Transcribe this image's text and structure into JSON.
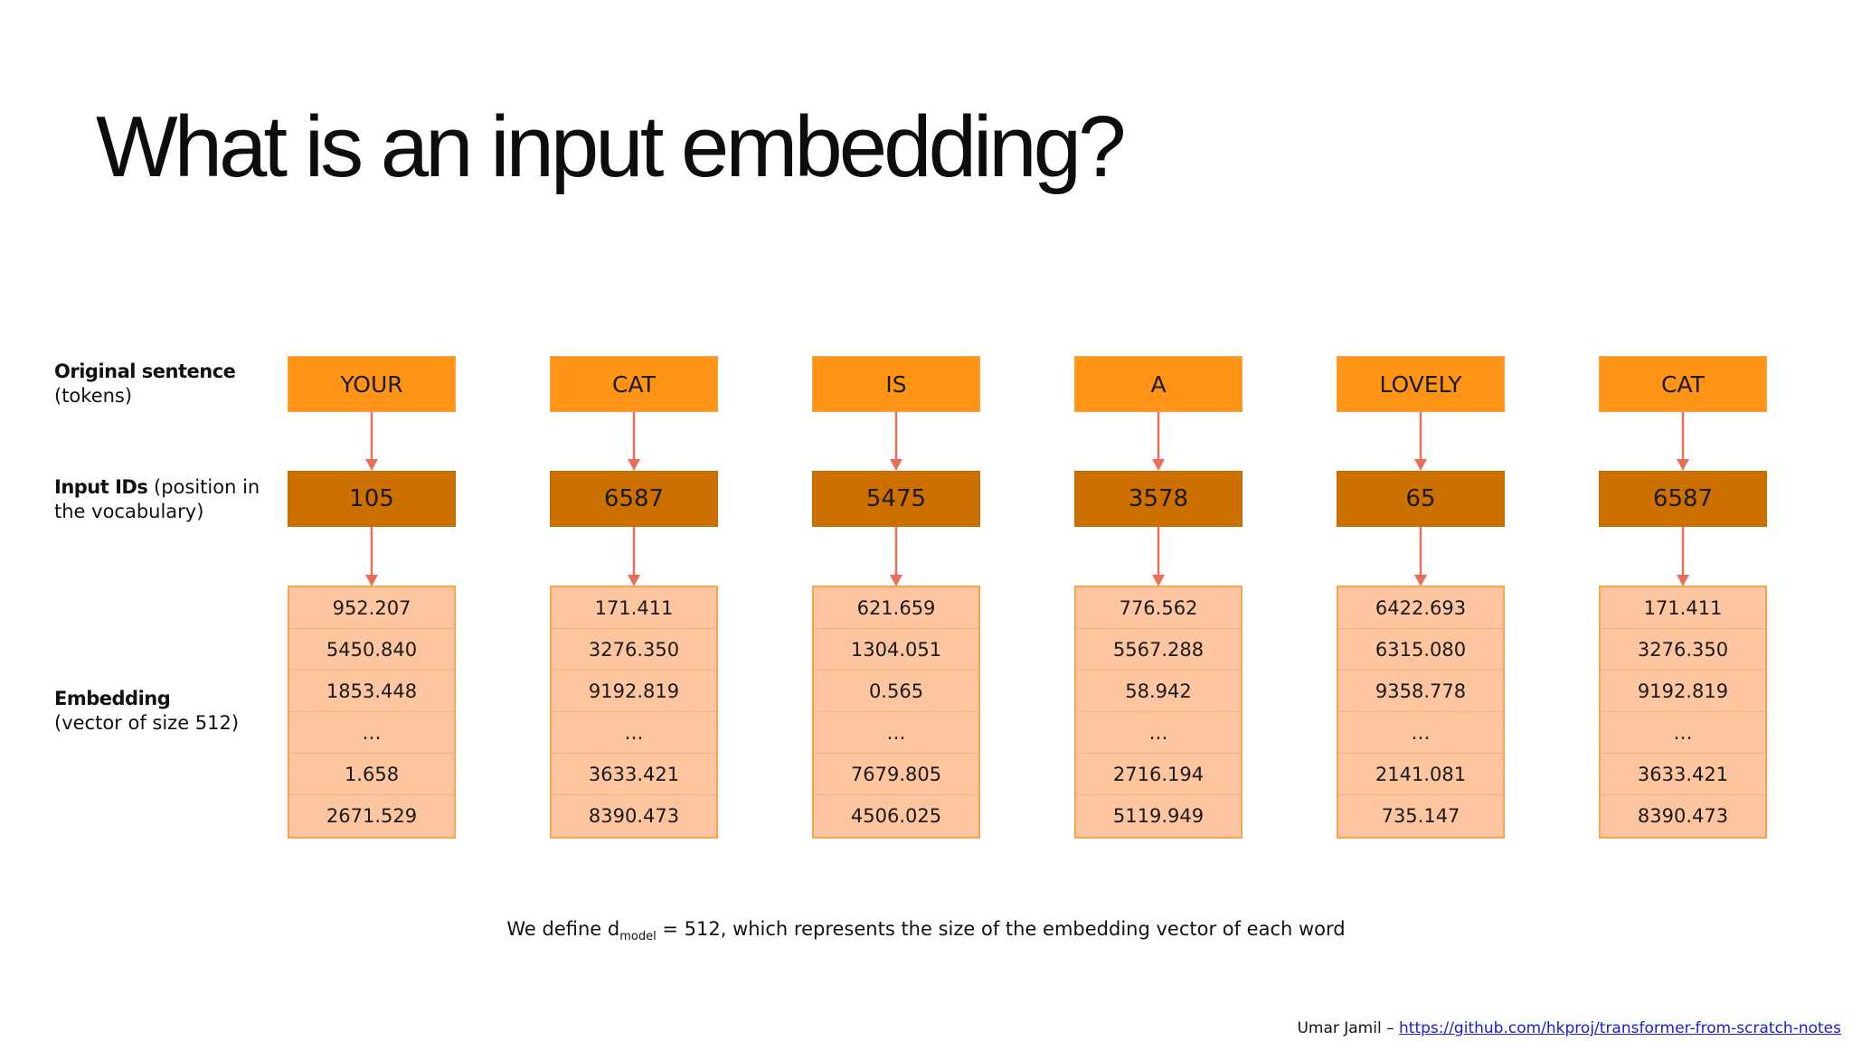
{
  "title": "What is an input embedding?",
  "labels": {
    "tokens_bold": "Original sentence",
    "tokens_rest": "(tokens)",
    "ids_bold": "Input IDs",
    "ids_rest": " (position in the vocabulary)",
    "embedding_bold": "Embedding",
    "embedding_rest": "(vector of size 512)"
  },
  "columns": [
    {
      "token": "YOUR",
      "id": "105",
      "embedding": [
        "952.207",
        "5450.840",
        "1853.448",
        "…",
        "1.658",
        "2671.529"
      ]
    },
    {
      "token": "CAT",
      "id": "6587",
      "embedding": [
        "171.411",
        "3276.350",
        "9192.819",
        "…",
        "3633.421",
        "8390.473"
      ]
    },
    {
      "token": "IS",
      "id": "5475",
      "embedding": [
        "621.659",
        "1304.051",
        "0.565",
        "…",
        "7679.805",
        "4506.025"
      ]
    },
    {
      "token": "A",
      "id": "3578",
      "embedding": [
        "776.562",
        "5567.288",
        "58.942",
        "…",
        "2716.194",
        "5119.949"
      ]
    },
    {
      "token": "LOVELY",
      "id": "65",
      "embedding": [
        "6422.693",
        "6315.080",
        "9358.778",
        "…",
        "2141.081",
        "735.147"
      ]
    },
    {
      "token": "CAT",
      "id": "6587",
      "embedding": [
        "171.411",
        "3276.350",
        "9192.819",
        "…",
        "3633.421",
        "8390.473"
      ]
    }
  ],
  "footnote": {
    "prefix": "We define d",
    "sub": "model",
    "suffix": " = 512, which represents the size of the embedding vector of each word"
  },
  "credit": {
    "author": "Umar Jamil – ",
    "link": "https://github.com/hkproj/transformer-from-scratch-notes"
  },
  "colors": {
    "token_fill": "#ff9416",
    "id_fill": "#cc7000",
    "embedding_fill": "#fec6a0",
    "arrow": "#e8705a"
  }
}
